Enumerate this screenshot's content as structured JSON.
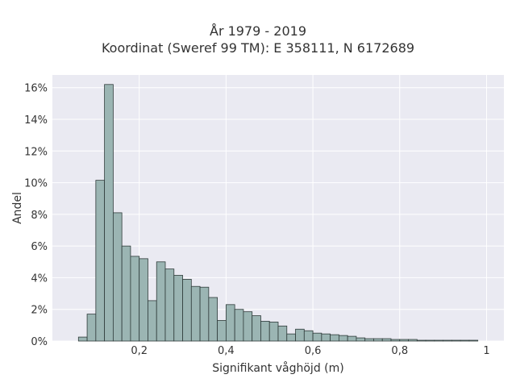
{
  "chart_data": {
    "type": "bar",
    "title": "År 1979 - 2019",
    "subtitle": "Koordinat (Sweref 99 TM): E 358111, N 6172689",
    "xlabel": "Signifikant våghöjd (m)",
    "ylabel": "Andel",
    "xlim": [
      0.0,
      1.04
    ],
    "ylim": [
      0,
      16.8
    ],
    "x_ticks": [
      0.2,
      0.4,
      0.6,
      0.8,
      1.0
    ],
    "x_tick_labels": [
      "0,2",
      "0,4",
      "0,6",
      "0,8",
      "1"
    ],
    "y_ticks": [
      0,
      2,
      4,
      6,
      8,
      10,
      12,
      14,
      16
    ],
    "y_tick_labels": [
      "0%",
      "2%",
      "4%",
      "6%",
      "8%",
      "10%",
      "12%",
      "14%",
      "16%"
    ],
    "bin_width": 0.02,
    "x": [
      0.06,
      0.08,
      0.1,
      0.12,
      0.14,
      0.16,
      0.18,
      0.2,
      0.22,
      0.24,
      0.26,
      0.28,
      0.3,
      0.32,
      0.34,
      0.36,
      0.38,
      0.4,
      0.42,
      0.44,
      0.46,
      0.48,
      0.5,
      0.52,
      0.54,
      0.56,
      0.58,
      0.6,
      0.62,
      0.64,
      0.66,
      0.68,
      0.7,
      0.72,
      0.74,
      0.76,
      0.78,
      0.8,
      0.82,
      0.84,
      0.86,
      0.88,
      0.9,
      0.92,
      0.94,
      0.96
    ],
    "values": [
      0.25,
      1.7,
      10.15,
      16.2,
      8.1,
      6.0,
      5.35,
      5.2,
      2.55,
      5.0,
      4.55,
      4.15,
      3.9,
      3.45,
      3.4,
      2.75,
      1.3,
      2.3,
      2.0,
      1.85,
      1.6,
      1.25,
      1.2,
      0.95,
      0.45,
      0.75,
      0.65,
      0.5,
      0.45,
      0.4,
      0.35,
      0.3,
      0.2,
      0.15,
      0.15,
      0.15,
      0.1,
      0.1,
      0.1,
      0.05,
      0.05,
      0.05,
      0.05,
      0.05,
      0.05,
      0.05
    ],
    "grid": true,
    "legend": "none",
    "colors": {
      "background": "#ffffff",
      "plot_background": "#eaeaf2",
      "grid": "#ffffff",
      "bar_fill": "#9bb5b3",
      "bar_edge": "#2f3b3a",
      "text": "#333333"
    }
  }
}
